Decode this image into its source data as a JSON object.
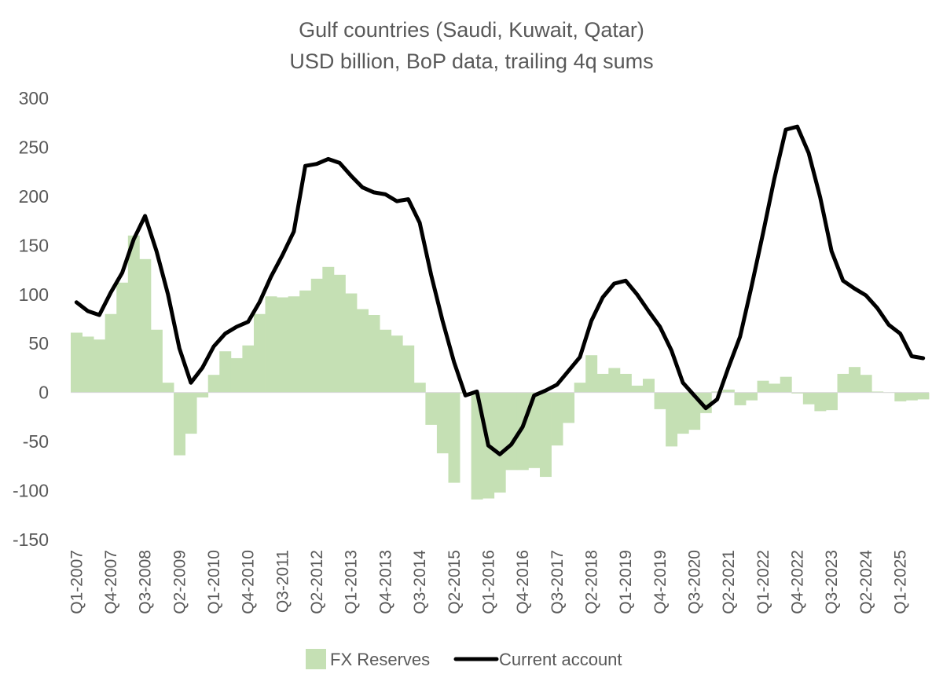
{
  "chart_data": {
    "type": "bar",
    "title": "Gulf countries (Saudi, Kuwait, Qatar)",
    "subtitle": "USD billion, BoP data, trailing 4q sums",
    "xlabel": "",
    "ylabel": "",
    "ylim": [
      -150,
      300
    ],
    "y_ticks": [
      300,
      250,
      200,
      150,
      100,
      50,
      0,
      -50,
      -100,
      -150
    ],
    "grid": false,
    "legend_position": "bottom",
    "colors": {
      "FX Reserves": "#c5e0b4",
      "Current account": "#000000",
      "text": "#595959"
    },
    "tick_labels": [
      "Q1-2007",
      "Q4-2007",
      "Q3-2008",
      "Q2-2009",
      "Q1-2010",
      "Q4-2010",
      "Q3-2011",
      "Q2-2012",
      "Q1-2013",
      "Q4-2013",
      "Q3-2014",
      "Q2-2015",
      "Q1-2016",
      "Q4-2016",
      "Q3-2017",
      "Q2-2018",
      "Q1-2019",
      "Q4-2019",
      "Q3-2020",
      "Q2-2021",
      "Q1-2022",
      "Q4-2022",
      "Q3-2023",
      "Q2-2024",
      "Q1-2025"
    ],
    "categories": [
      "Q1-2007",
      "Q2-2007",
      "Q3-2007",
      "Q4-2007",
      "Q1-2008",
      "Q2-2008",
      "Q3-2008",
      "Q4-2008",
      "Q1-2009",
      "Q2-2009",
      "Q3-2009",
      "Q4-2009",
      "Q1-2010",
      "Q2-2010",
      "Q3-2010",
      "Q4-2010",
      "Q1-2011",
      "Q2-2011",
      "Q3-2011",
      "Q4-2011",
      "Q1-2012",
      "Q2-2012",
      "Q3-2012",
      "Q4-2012",
      "Q1-2013",
      "Q2-2013",
      "Q3-2013",
      "Q4-2013",
      "Q1-2014",
      "Q2-2014",
      "Q3-2014",
      "Q4-2014",
      "Q1-2015",
      "Q2-2015",
      "Q3-2015",
      "Q4-2015",
      "Q1-2016",
      "Q2-2016",
      "Q3-2016",
      "Q4-2016",
      "Q1-2017",
      "Q2-2017",
      "Q3-2017",
      "Q4-2017",
      "Q1-2018",
      "Q2-2018",
      "Q3-2018",
      "Q4-2018",
      "Q1-2019",
      "Q2-2019",
      "Q3-2019",
      "Q4-2019",
      "Q1-2020",
      "Q2-2020",
      "Q3-2020",
      "Q4-2020",
      "Q1-2021",
      "Q2-2021",
      "Q3-2021",
      "Q4-2021",
      "Q1-2022",
      "Q2-2022",
      "Q3-2022",
      "Q4-2022",
      "Q1-2023",
      "Q2-2023",
      "Q3-2023",
      "Q4-2023",
      "Q1-2024",
      "Q2-2024",
      "Q3-2024",
      "Q4-2024",
      "Q1-2025",
      "Q2-2025",
      "Q3-2025"
    ],
    "series": [
      {
        "name": "FX Reserves",
        "kind": "bar",
        "values": [
          61,
          57,
          54,
          80,
          112,
          160,
          136,
          64,
          10,
          -64,
          -42,
          -5,
          18,
          42,
          35,
          48,
          80,
          98,
          97,
          98,
          104,
          116,
          128,
          120,
          101,
          85,
          79,
          64,
          58,
          48,
          10,
          -33,
          -62,
          -92,
          -1,
          -109,
          -108,
          -102,
          -79,
          -79,
          -77,
          -86,
          -54,
          -31,
          10,
          38,
          19,
          25,
          19,
          7,
          14,
          -17,
          -55,
          -42,
          -38,
          -21,
          1,
          3,
          -13,
          -8,
          12,
          9,
          16,
          -1,
          -12,
          -19,
          -18,
          19,
          26,
          18,
          1,
          0,
          -9,
          -8,
          -7
        ]
      },
      {
        "name": "Current account",
        "kind": "line",
        "values": [
          92,
          83,
          79,
          102,
          122,
          156,
          180,
          144,
          100,
          45,
          10,
          25,
          47,
          60,
          67,
          72,
          92,
          118,
          140,
          164,
          231,
          233,
          238,
          234,
          221,
          209,
          204,
          202,
          195,
          197,
          173,
          120,
          73,
          31,
          -3,
          1,
          -54,
          -63,
          -53,
          -35,
          -3,
          2,
          8,
          22,
          36,
          73,
          97,
          111,
          114,
          100,
          83,
          67,
          43,
          10,
          -3,
          -16,
          -7,
          26,
          57,
          108,
          162,
          218,
          268,
          271,
          244,
          199,
          144,
          114,
          106,
          99,
          86,
          69,
          60,
          37,
          35
        ]
      }
    ]
  }
}
